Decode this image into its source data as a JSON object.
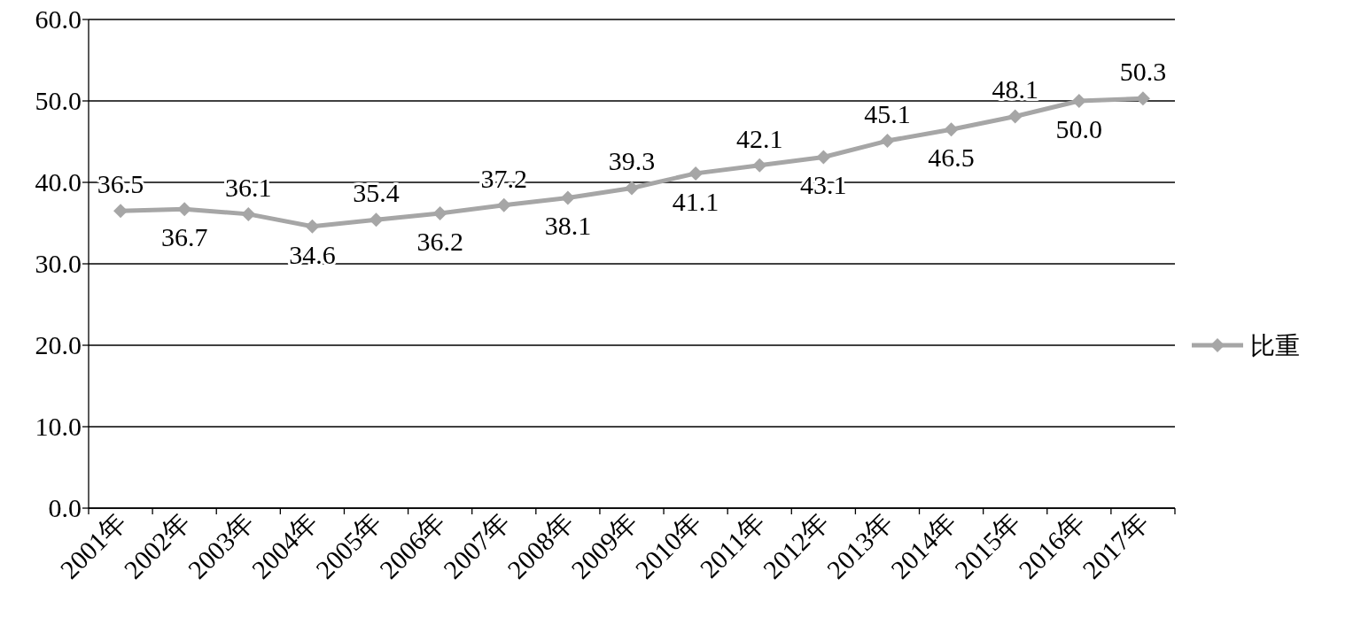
{
  "chart_data": {
    "type": "line",
    "categories": [
      "2001年",
      "2002年",
      "2003年",
      "2004年",
      "2005年",
      "2006年",
      "2007年",
      "2008年",
      "2009年",
      "2010年",
      "2011年",
      "2012年",
      "2013年",
      "2014年",
      "2015年",
      "2016年",
      "2017年"
    ],
    "series": [
      {
        "name": "比重",
        "color": "#a6a6a6",
        "values": [
          36.5,
          36.7,
          36.1,
          34.6,
          35.4,
          36.2,
          37.2,
          38.1,
          39.3,
          41.1,
          42.1,
          43.1,
          45.1,
          46.5,
          48.1,
          50.0,
          50.3
        ],
        "value_labels": [
          "36.5",
          "36.7",
          "36.1",
          "34.6",
          "35.4",
          "36.2",
          "37.2",
          "38.1",
          "39.3",
          "41.1",
          "42.1",
          "43.1",
          "45.1",
          "46.5",
          "48.1",
          "50.0",
          "50.3"
        ]
      }
    ],
    "ylim": [
      0,
      60
    ],
    "yticks": [
      {
        "value": 0,
        "label": "0.0"
      },
      {
        "value": 10,
        "label": "10.0"
      },
      {
        "value": 20,
        "label": "20.0"
      },
      {
        "value": 30,
        "label": "30.0"
      },
      {
        "value": 40,
        "label": "40.0"
      },
      {
        "value": 50,
        "label": "50.0"
      },
      {
        "value": 60,
        "label": "60.0"
      }
    ],
    "grid": "y",
    "legend": "right",
    "marker": "diamond",
    "line_style": "solid"
  }
}
